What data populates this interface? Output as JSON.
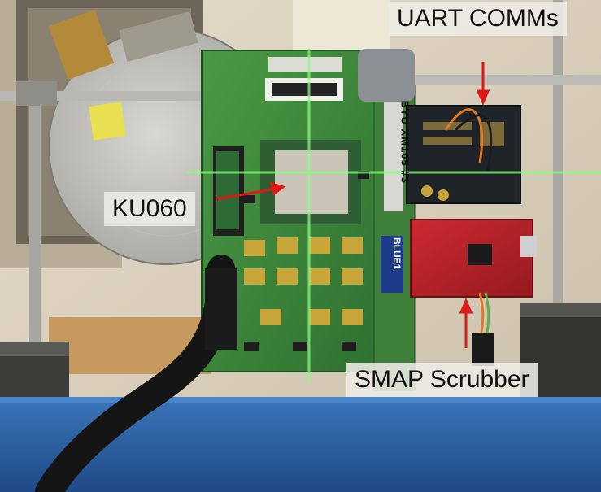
{
  "labels": {
    "uart": "UART COMMs",
    "ku060": "KU060",
    "smap": "SMAP Scrubber"
  },
  "board_text": {
    "byu": "BYU XM105 #3",
    "blue": "BLUE1"
  },
  "colors": {
    "pcb_green": "#3f8a3a",
    "red_board": "#b8222a",
    "dark_board": "#1f2428",
    "laser_green": "#7dff7a",
    "arrow_red": "#e01818",
    "table_blue": "#2e62a8",
    "wall": "#d7cdb9"
  }
}
